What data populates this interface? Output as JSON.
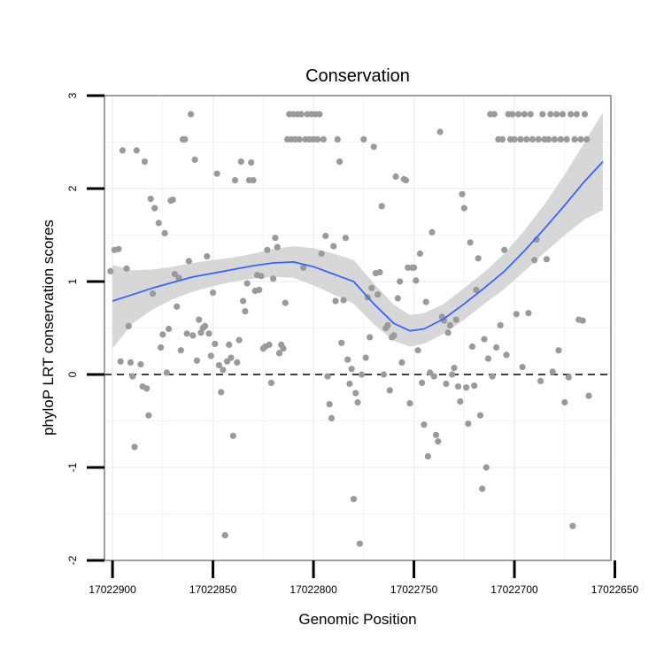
{
  "chart_data": {
    "type": "scatter",
    "title": "Conservation",
    "xlabel": "Genomic Position",
    "ylabel": "phyloP LRT conservation scores",
    "x_reversed": true,
    "xlim": [
      17022652,
      17022904
    ],
    "ylim": [
      -2,
      3
    ],
    "x_ticks": [
      17022900,
      17022850,
      17022800,
      17022750,
      17022700,
      17022650
    ],
    "x_tick_labels": [
      "17022900",
      "17022850",
      "17022800",
      "17022750",
      "17022700",
      "17022650"
    ],
    "y_ticks": [
      -2,
      -1,
      0,
      1,
      2,
      3
    ],
    "y_tick_labels": [
      "-2",
      "-1",
      "0",
      "1",
      "2",
      "3"
    ],
    "hline_y": 0,
    "colors": {
      "points": "#9a9a9a",
      "smooth_line": "#3366ff",
      "ribbon": "#d3d3d3",
      "grid": "#f0f0f0",
      "panel_border": "#808080"
    },
    "points": [
      [
        17022901,
        1.11
      ],
      [
        17022899,
        1.34
      ],
      [
        17022897,
        1.35
      ],
      [
        17022896,
        0.14
      ],
      [
        17022895,
        2.41
      ],
      [
        17022893,
        1.14
      ],
      [
        17022892,
        0.52
      ],
      [
        17022891,
        0.13
      ],
      [
        17022890,
        -0.02
      ],
      [
        17022889,
        -0.78
      ],
      [
        17022888,
        2.41
      ],
      [
        17022886,
        0.11
      ],
      [
        17022885,
        -0.13
      ],
      [
        17022884,
        2.29
      ],
      [
        17022883,
        -0.15
      ],
      [
        17022882,
        -0.44
      ],
      [
        17022881,
        1.89
      ],
      [
        17022880,
        0.87
      ],
      [
        17022879,
        1.79
      ],
      [
        17022877,
        1.63
      ],
      [
        17022876,
        0.29
      ],
      [
        17022875,
        0.43
      ],
      [
        17022874,
        1.52
      ],
      [
        17022873,
        0.02
      ],
      [
        17022872,
        0.49
      ],
      [
        17022871,
        1.87
      ],
      [
        17022870,
        1.88
      ],
      [
        17022869,
        1.08
      ],
      [
        17022868,
        0.73
      ],
      [
        17022867,
        1.04
      ],
      [
        17022866,
        0.26
      ],
      [
        17022865,
        2.53
      ],
      [
        17022864,
        2.53
      ],
      [
        17022863,
        0.44
      ],
      [
        17022862,
        1.22
      ],
      [
        17022861,
        2.8
      ],
      [
        17022860,
        0.42
      ],
      [
        17022859,
        2.31
      ],
      [
        17022858,
        0.15
      ],
      [
        17022857,
        0.59
      ],
      [
        17022856,
        0.45
      ],
      [
        17022855,
        0.5
      ],
      [
        17022854,
        0.52
      ],
      [
        17022853,
        1.27
      ],
      [
        17022852,
        0.44
      ],
      [
        17022851,
        0.2
      ],
      [
        17022850,
        0.88
      ],
      [
        17022849,
        0.33
      ],
      [
        17022848,
        2.16
      ],
      [
        17022847,
        0.1
      ],
      [
        17022846,
        -0.19
      ],
      [
        17022845,
        0.05
      ],
      [
        17022844,
        -1.73
      ],
      [
        17022843,
        0.14
      ],
      [
        17022842,
        0.32
      ],
      [
        17022841,
        0.18
      ],
      [
        17022840,
        -0.66
      ],
      [
        17022839,
        2.09
      ],
      [
        17022838,
        0.13
      ],
      [
        17022837,
        0.37
      ],
      [
        17022836,
        2.29
      ],
      [
        17022835,
        0.79
      ],
      [
        17022834,
        0.68
      ],
      [
        17022833,
        0.98
      ],
      [
        17022832,
        2.09
      ],
      [
        17022831,
        2.28
      ],
      [
        17022830,
        2.09
      ],
      [
        17022829,
        0.9
      ],
      [
        17022828,
        1.07
      ],
      [
        17022827,
        0.91
      ],
      [
        17022826,
        1.06
      ],
      [
        17022825,
        0.28
      ],
      [
        17022824,
        0.3
      ],
      [
        17022823,
        1.34
      ],
      [
        17022822,
        0.32
      ],
      [
        17022821,
        -0.09
      ],
      [
        17022820,
        1.03
      ],
      [
        17022819,
        1.47
      ],
      [
        17022818,
        1.37
      ],
      [
        17022817,
        0.23
      ],
      [
        17022816,
        0.32
      ],
      [
        17022815,
        0.28
      ],
      [
        17022814,
        0.77
      ],
      [
        17022813,
        2.53
      ],
      [
        17022812,
        2.8
      ],
      [
        17022811,
        2.53
      ],
      [
        17022810,
        2.8
      ],
      [
        17022809,
        2.53
      ],
      [
        17022808,
        2.8
      ],
      [
        17022807,
        2.53
      ],
      [
        17022806,
        2.8
      ],
      [
        17022805,
        1.15
      ],
      [
        17022804,
        2.53
      ],
      [
        17022803,
        2.8
      ],
      [
        17022802,
        2.53
      ],
      [
        17022801,
        2.8
      ],
      [
        17022800,
        2.53
      ],
      [
        17022799,
        2.8
      ],
      [
        17022798,
        2.53
      ],
      [
        17022797,
        2.8
      ],
      [
        17022796,
        1.3
      ],
      [
        17022795,
        2.53
      ],
      [
        17022794,
        1.49
      ],
      [
        17022793,
        -0.02
      ],
      [
        17022792,
        -0.32
      ],
      [
        17022791,
        -0.47
      ],
      [
        17022790,
        1.38
      ],
      [
        17022789,
        0.79
      ],
      [
        17022788,
        2.53
      ],
      [
        17022787,
        2.29
      ],
      [
        17022786,
        0.34
      ],
      [
        17022785,
        0.8
      ],
      [
        17022784,
        1.47
      ],
      [
        17022783,
        0.16
      ],
      [
        17022782,
        -0.1
      ],
      [
        17022781,
        0.06
      ],
      [
        17022780,
        -1.34
      ],
      [
        17022779,
        -0.2
      ],
      [
        17022778,
        -0.3
      ],
      [
        17022777,
        -1.82
      ],
      [
        17022776,
        0.0
      ],
      [
        17022775,
        2.53
      ],
      [
        17022774,
        0.18
      ],
      [
        17022773,
        0.83
      ],
      [
        17022772,
        0.4
      ],
      [
        17022771,
        0.93
      ],
      [
        17022770,
        2.45
      ],
      [
        17022769,
        1.09
      ],
      [
        17022768,
        0.86
      ],
      [
        17022767,
        1.1
      ],
      [
        17022766,
        1.81
      ],
      [
        17022765,
        0.0
      ],
      [
        17022764,
        0.5
      ],
      [
        17022763,
        0.53
      ],
      [
        17022762,
        -0.17
      ],
      [
        17022761,
        0.4
      ],
      [
        17022760,
        0.42
      ],
      [
        17022759,
        2.13
      ],
      [
        17022758,
        0.82
      ],
      [
        17022757,
        1.0
      ],
      [
        17022756,
        0.13
      ],
      [
        17022755,
        2.1
      ],
      [
        17022754,
        2.09
      ],
      [
        17022753,
        1.15
      ],
      [
        17022752,
        -0.31
      ],
      [
        17022751,
        1.15
      ],
      [
        17022750,
        1.15
      ],
      [
        17022749,
        1.01
      ],
      [
        17022748,
        0.26
      ],
      [
        17022747,
        1.3
      ],
      [
        17022746,
        -0.09
      ],
      [
        17022745,
        -0.54
      ],
      [
        17022744,
        0.78
      ],
      [
        17022743,
        -0.88
      ],
      [
        17022742,
        0.02
      ],
      [
        17022741,
        1.53
      ],
      [
        17022740,
        -0.02
      ],
      [
        17022739,
        -0.65
      ],
      [
        17022738,
        -0.72
      ],
      [
        17022737,
        2.61
      ],
      [
        17022736,
        0.62
      ],
      [
        17022735,
        0.58
      ],
      [
        17022734,
        -0.1
      ],
      [
        17022733,
        0.45
      ],
      [
        17022732,
        0.53
      ],
      [
        17022731,
        0.0
      ],
      [
        17022730,
        0.07
      ],
      [
        17022729,
        0.59
      ],
      [
        17022728,
        -0.13
      ],
      [
        17022727,
        -0.29
      ],
      [
        17022726,
        1.94
      ],
      [
        17022725,
        1.79
      ],
      [
        17022724,
        -0.14
      ],
      [
        17022723,
        -0.53
      ],
      [
        17022722,
        1.42
      ],
      [
        17022721,
        0.3
      ],
      [
        17022720,
        -0.12
      ],
      [
        17022719,
        0.91
      ],
      [
        17022718,
        1.25
      ],
      [
        17022717,
        -0.44
      ],
      [
        17022716,
        -1.23
      ],
      [
        17022715,
        0.38
      ],
      [
        17022714,
        -1.0
      ],
      [
        17022713,
        0.17
      ],
      [
        17022712,
        2.8
      ],
      [
        17022711,
        -0.02
      ],
      [
        17022710,
        2.8
      ],
      [
        17022709,
        0.29
      ],
      [
        17022708,
        2.53
      ],
      [
        17022707,
        0.53
      ],
      [
        17022706,
        2.53
      ],
      [
        17022705,
        1.34
      ],
      [
        17022704,
        0.21
      ],
      [
        17022703,
        2.8
      ],
      [
        17022702,
        2.53
      ],
      [
        17022701,
        2.8
      ],
      [
        17022700,
        2.53
      ],
      [
        17022699,
        0.65
      ],
      [
        17022698,
        2.8
      ],
      [
        17022697,
        2.53
      ],
      [
        17022696,
        0.08
      ],
      [
        17022695,
        2.8
      ],
      [
        17022694,
        2.53
      ],
      [
        17022693,
        0.66
      ],
      [
        17022692,
        2.8
      ],
      [
        17022691,
        2.53
      ],
      [
        17022690,
        1.23
      ],
      [
        17022689,
        1.45
      ],
      [
        17022688,
        2.53
      ],
      [
        17022687,
        -0.07
      ],
      [
        17022686,
        2.8
      ],
      [
        17022685,
        2.53
      ],
      [
        17022684,
        1.24
      ],
      [
        17022683,
        2.53
      ],
      [
        17022682,
        2.8
      ],
      [
        17022681,
        0.03
      ],
      [
        17022680,
        2.53
      ],
      [
        17022679,
        2.8
      ],
      [
        17022678,
        0.26
      ],
      [
        17022677,
        2.53
      ],
      [
        17022676,
        2.8
      ],
      [
        17022675,
        -0.3
      ],
      [
        17022674,
        2.53
      ],
      [
        17022673,
        -0.03
      ],
      [
        17022672,
        2.8
      ],
      [
        17022671,
        -1.63
      ],
      [
        17022670,
        2.53
      ],
      [
        17022669,
        2.8
      ],
      [
        17022668,
        0.59
      ],
      [
        17022667,
        2.53
      ],
      [
        17022666,
        0.58
      ],
      [
        17022665,
        2.8
      ],
      [
        17022664,
        2.53
      ],
      [
        17022663,
        -0.23
      ]
    ],
    "smooth_line": [
      [
        17022900,
        0.79
      ],
      [
        17022890,
        0.86
      ],
      [
        17022880,
        0.93
      ],
      [
        17022870,
        0.99
      ],
      [
        17022860,
        1.05
      ],
      [
        17022850,
        1.09
      ],
      [
        17022840,
        1.13
      ],
      [
        17022830,
        1.17
      ],
      [
        17022820,
        1.2
      ],
      [
        17022810,
        1.21
      ],
      [
        17022800,
        1.16
      ],
      [
        17022790,
        1.08
      ],
      [
        17022780,
        1.0
      ],
      [
        17022770,
        0.76
      ],
      [
        17022760,
        0.55
      ],
      [
        17022752,
        0.47
      ],
      [
        17022745,
        0.49
      ],
      [
        17022735,
        0.6
      ],
      [
        17022725,
        0.76
      ],
      [
        17022715,
        0.93
      ],
      [
        17022705,
        1.11
      ],
      [
        17022695,
        1.33
      ],
      [
        17022685,
        1.57
      ],
      [
        17022675,
        1.82
      ],
      [
        17022665,
        2.08
      ],
      [
        17022656,
        2.29
      ]
    ],
    "ribbon_upper": [
      [
        17022900,
        1.18
      ],
      [
        17022890,
        1.12
      ],
      [
        17022880,
        1.13
      ],
      [
        17022870,
        1.16
      ],
      [
        17022860,
        1.2
      ],
      [
        17022850,
        1.23
      ],
      [
        17022840,
        1.26
      ],
      [
        17022830,
        1.3
      ],
      [
        17022820,
        1.35
      ],
      [
        17022810,
        1.38
      ],
      [
        17022800,
        1.36
      ],
      [
        17022790,
        1.3
      ],
      [
        17022780,
        1.23
      ],
      [
        17022770,
        0.98
      ],
      [
        17022760,
        0.75
      ],
      [
        17022752,
        0.64
      ],
      [
        17022745,
        0.66
      ],
      [
        17022735,
        0.76
      ],
      [
        17022725,
        0.93
      ],
      [
        17022715,
        1.1
      ],
      [
        17022705,
        1.3
      ],
      [
        17022695,
        1.55
      ],
      [
        17022685,
        1.83
      ],
      [
        17022675,
        2.15
      ],
      [
        17022665,
        2.5
      ],
      [
        17022656,
        2.82
      ]
    ],
    "ribbon_lower": [
      [
        17022900,
        0.28
      ],
      [
        17022890,
        0.55
      ],
      [
        17022880,
        0.7
      ],
      [
        17022870,
        0.81
      ],
      [
        17022860,
        0.89
      ],
      [
        17022850,
        0.95
      ],
      [
        17022840,
        1.0
      ],
      [
        17022830,
        1.03
      ],
      [
        17022820,
        1.05
      ],
      [
        17022810,
        1.04
      ],
      [
        17022800,
        0.96
      ],
      [
        17022790,
        0.86
      ],
      [
        17022780,
        0.76
      ],
      [
        17022770,
        0.54
      ],
      [
        17022760,
        0.36
      ],
      [
        17022752,
        0.3
      ],
      [
        17022745,
        0.33
      ],
      [
        17022735,
        0.44
      ],
      [
        17022725,
        0.59
      ],
      [
        17022715,
        0.76
      ],
      [
        17022705,
        0.92
      ],
      [
        17022695,
        1.11
      ],
      [
        17022685,
        1.31
      ],
      [
        17022675,
        1.5
      ],
      [
        17022665,
        1.67
      ],
      [
        17022656,
        1.77
      ]
    ]
  }
}
